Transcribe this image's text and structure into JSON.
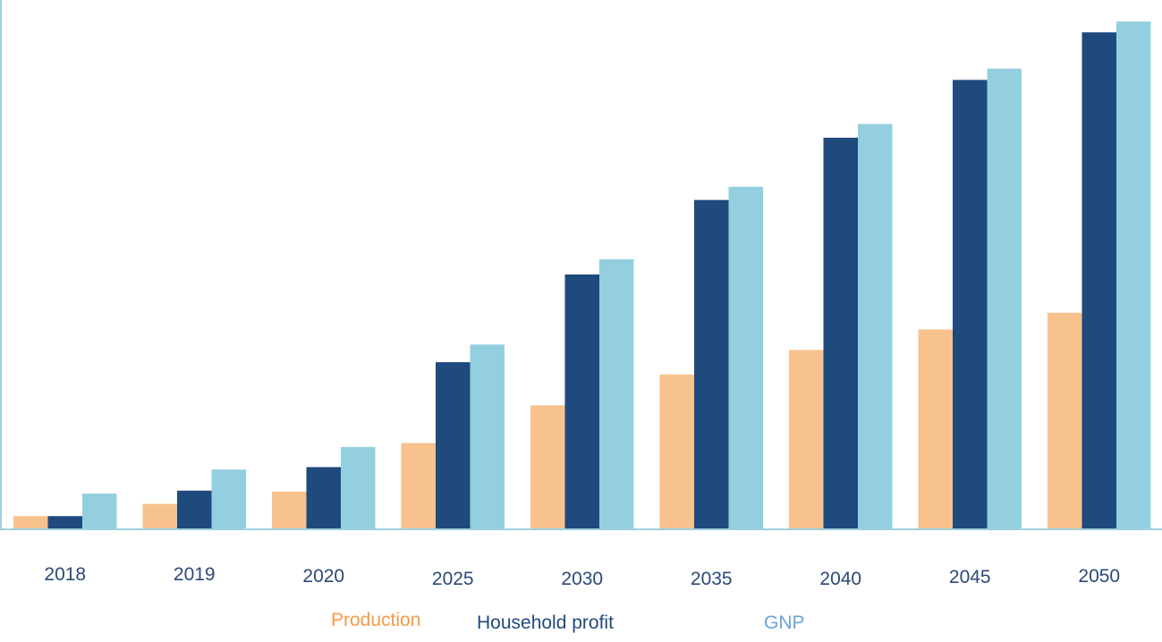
{
  "chart_data": {
    "type": "bar",
    "title": "",
    "xlabel": "",
    "ylabel": "",
    "categories": [
      "2018",
      "2019",
      "2020",
      "2025",
      "2030",
      "2035",
      "2040",
      "2045",
      "2050"
    ],
    "series": [
      {
        "name": "Production",
        "color": "#f8c28f",
        "legend_color": "#f59a45",
        "values": [
          2.7,
          5.2,
          7.7,
          17.6,
          25.3,
          31.6,
          36.6,
          40.8,
          44.2
        ]
      },
      {
        "name": "Household profit",
        "color": "#1f4a7e",
        "legend_color": "#1f4a7e",
        "values": [
          2.7,
          7.9,
          12.7,
          34.1,
          52.0,
          67.2,
          79.9,
          91.7,
          101.4
        ]
      },
      {
        "name": "GNP",
        "color": "#94cfdf",
        "legend_color": "#6aa3d6",
        "values": [
          7.3,
          12.2,
          16.8,
          37.7,
          55.1,
          69.9,
          82.7,
          94.0,
          103.6
        ]
      }
    ],
    "ylim": [
      0,
      108
    ],
    "grid": false,
    "legend_position": "bottom-center",
    "axis_color": "#9fd0dd"
  }
}
